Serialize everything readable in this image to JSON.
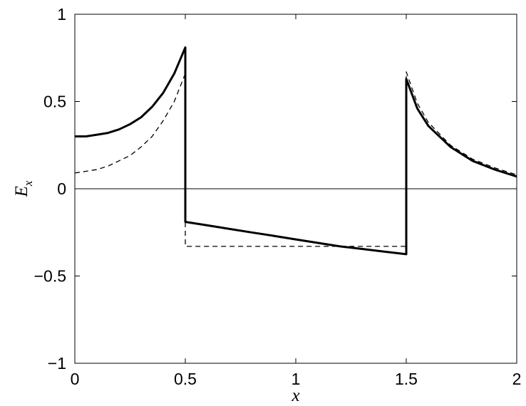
{
  "chart_data": {
    "type": "line",
    "xlabel": "x",
    "ylabel": {
      "main": "E",
      "subscript": "x"
    },
    "xlim": [
      0,
      2
    ],
    "ylim": [
      -1,
      1
    ],
    "xticks": [
      0,
      0.5,
      1,
      1.5,
      2
    ],
    "xtick_labels": [
      "0",
      "0.5",
      "1",
      "1.5",
      "2"
    ],
    "yticks": [
      -1,
      -0.5,
      0,
      0.5,
      1
    ],
    "ytick_labels": [
      "−1",
      "−0.5",
      "0",
      "0.5",
      "1"
    ],
    "grid": false,
    "reference_line_y": 0,
    "series": [
      {
        "style": "solid",
        "emphasis": "thick",
        "color": "#000000",
        "points": [
          [
            0,
            0.3
          ],
          [
            0.05,
            0.3
          ],
          [
            0.1,
            0.31
          ],
          [
            0.15,
            0.32
          ],
          [
            0.2,
            0.34
          ],
          [
            0.25,
            0.37
          ],
          [
            0.3,
            0.41
          ],
          [
            0.35,
            0.47
          ],
          [
            0.4,
            0.55
          ],
          [
            0.45,
            0.66
          ],
          [
            0.5,
            0.81
          ],
          [
            0.5,
            -0.19
          ],
          [
            0.6,
            -0.21
          ],
          [
            0.7,
            -0.23
          ],
          [
            0.8,
            -0.25
          ],
          [
            0.9,
            -0.27
          ],
          [
            1.0,
            -0.29
          ],
          [
            1.1,
            -0.31
          ],
          [
            1.2,
            -0.33
          ],
          [
            1.3,
            -0.345
          ],
          [
            1.4,
            -0.36
          ],
          [
            1.5,
            -0.375
          ],
          [
            1.5,
            0.63
          ],
          [
            1.55,
            0.46
          ],
          [
            1.6,
            0.36
          ],
          [
            1.7,
            0.24
          ],
          [
            1.8,
            0.16
          ],
          [
            1.9,
            0.11
          ],
          [
            2.0,
            0.07
          ]
        ]
      },
      {
        "style": "dashed",
        "emphasis": "thin",
        "color": "#000000",
        "points": [
          [
            0,
            0.09
          ],
          [
            0.05,
            0.1
          ],
          [
            0.1,
            0.11
          ],
          [
            0.15,
            0.13
          ],
          [
            0.2,
            0.16
          ],
          [
            0.25,
            0.19
          ],
          [
            0.3,
            0.24
          ],
          [
            0.35,
            0.3
          ],
          [
            0.4,
            0.39
          ],
          [
            0.45,
            0.5
          ],
          [
            0.5,
            0.66
          ],
          [
            0.5,
            -0.33
          ],
          [
            1.5,
            -0.33
          ],
          [
            1.5,
            0.67
          ],
          [
            1.55,
            0.49
          ],
          [
            1.6,
            0.38
          ],
          [
            1.7,
            0.25
          ],
          [
            1.8,
            0.17
          ],
          [
            1.9,
            0.12
          ],
          [
            2.0,
            0.08
          ]
        ]
      }
    ]
  }
}
